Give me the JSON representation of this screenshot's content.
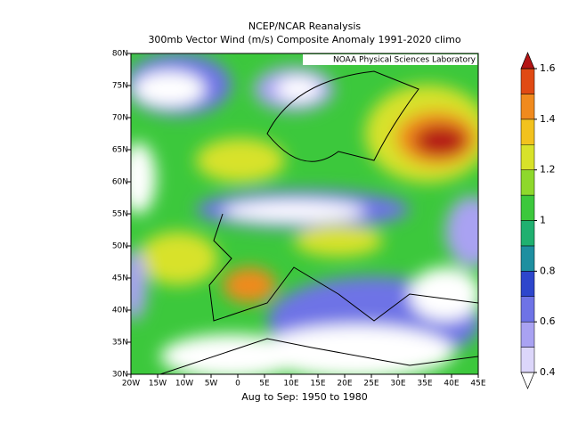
{
  "title": "NCEP/NCAR Reanalysis",
  "subtitle": "300mb Vector Wind (m/s) Composite Anomaly 1991-2020 climo",
  "credit": "NOAA Physical Sciences Laboratory",
  "footer": "Aug to Sep: 1950 to 1980",
  "lon_labels": [
    "20W",
    "15W",
    "10W",
    "5W",
    "0",
    "5E",
    "10E",
    "15E",
    "20E",
    "25E",
    "30E",
    "35E",
    "40E",
    "45E"
  ],
  "lat_labels": [
    "80N",
    "75N",
    "70N",
    "65N",
    "60N",
    "55N",
    "50N",
    "45N",
    "40N",
    "35N",
    "30N"
  ],
  "colorbar": {
    "lim": [
      0.4,
      1.6
    ],
    "ticks": [
      0.4,
      0.6,
      0.8,
      1,
      1.2,
      1.4,
      1.6
    ],
    "colors": [
      "#dcd6fa",
      "#a9a2f2",
      "#6e73e6",
      "#2d46cc",
      "#1e8fa0",
      "#20b070",
      "#3cc83c",
      "#8ed82c",
      "#d8e22a",
      "#f2c21e",
      "#f08a1e",
      "#e04a14"
    ],
    "under": "#ffffff",
    "over": "#b41414"
  }
}
